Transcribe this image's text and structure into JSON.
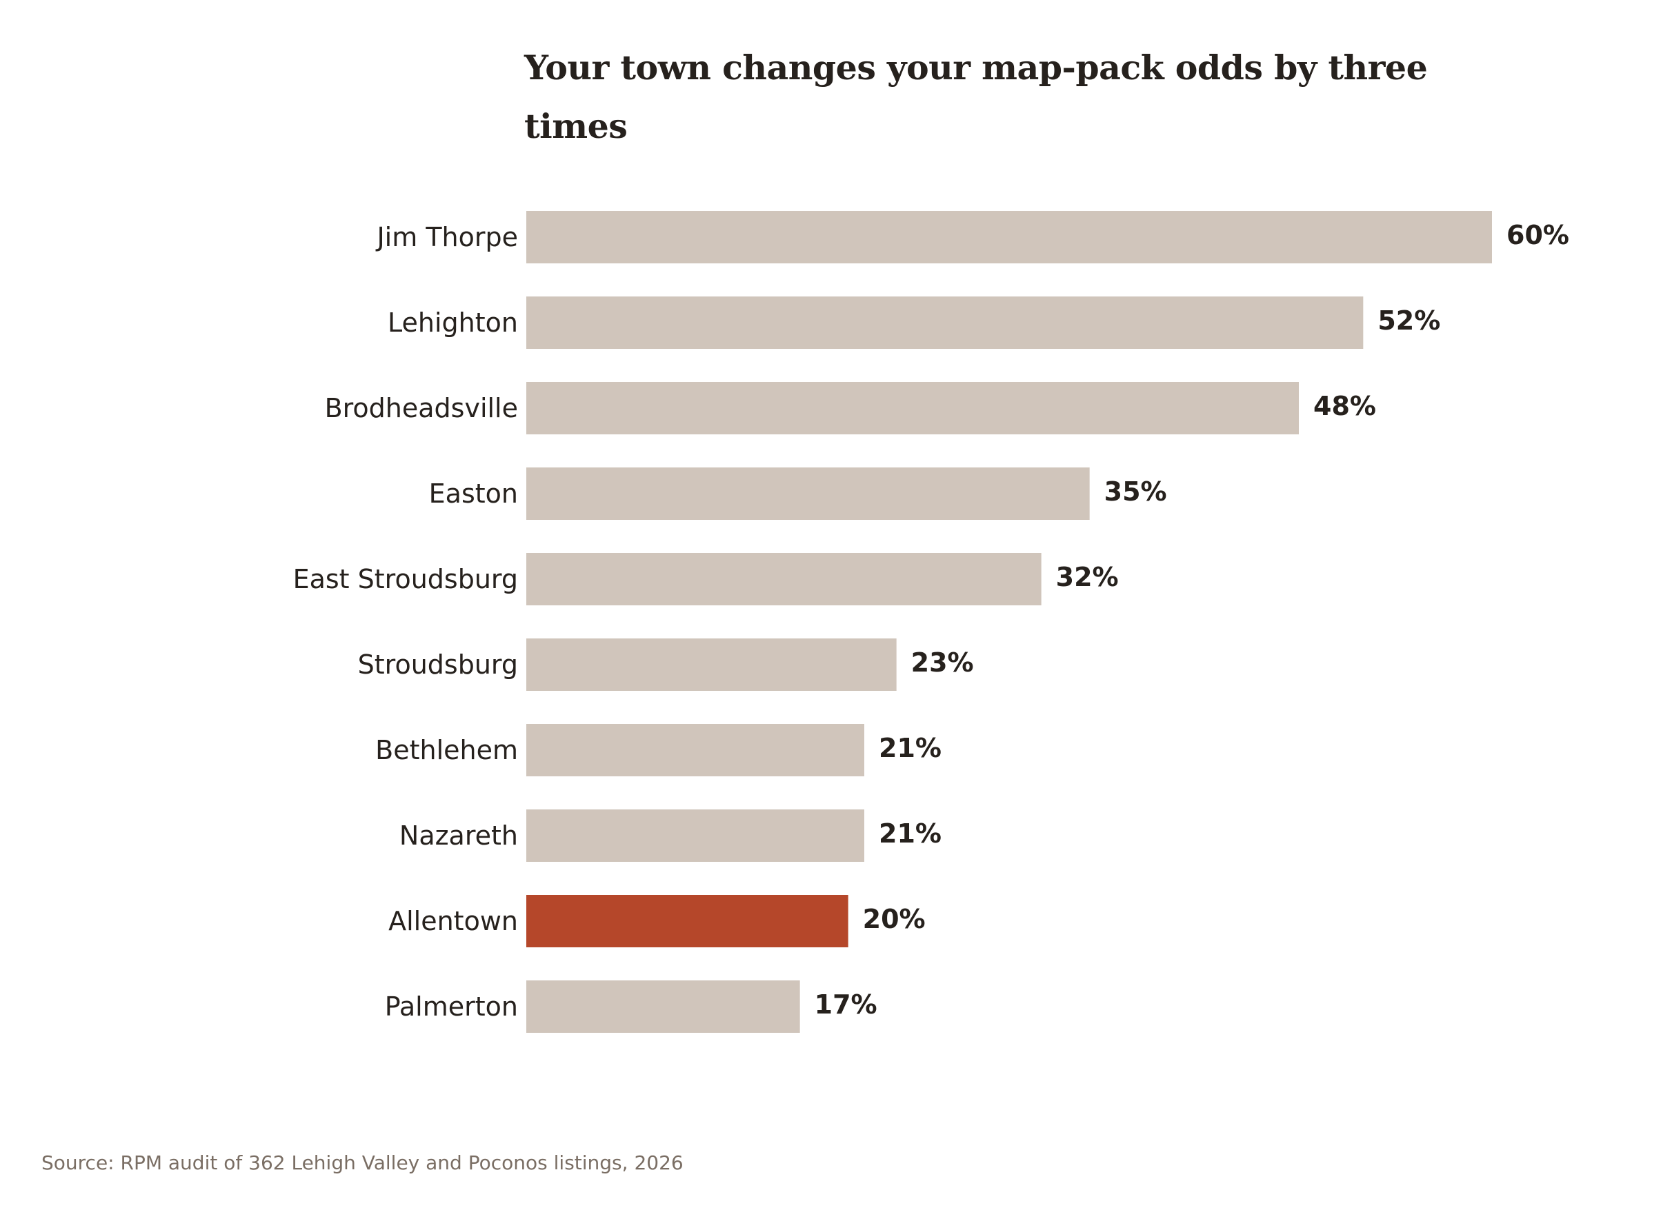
{
  "chart_data": {
    "type": "bar",
    "orientation": "horizontal",
    "title": "Your town changes your map-pack odds by three times",
    "categories": [
      "Jim Thorpe",
      "Lehighton",
      "Brodheadsville",
      "Easton",
      "East Stroudsburg",
      "Stroudsburg",
      "Bethlehem",
      "Nazareth",
      "Allentown",
      "Palmerton"
    ],
    "values": [
      60,
      52,
      48,
      35,
      32,
      23,
      21,
      21,
      20,
      17
    ],
    "value_labels": [
      "60%",
      "52%",
      "48%",
      "35%",
      "32%",
      "23%",
      "21%",
      "21%",
      "20%",
      "17%"
    ],
    "highlight": "Allentown",
    "xlim": [
      0,
      60
    ],
    "grid": false,
    "legend": "none",
    "colors": {
      "bar": "#d0c5bb",
      "highlight": "#b5472a",
      "text": "#26211d",
      "source": "#7a6e64"
    },
    "source": "Source: RPM audit of 362 Lehigh Valley and Poconos listings, 2026"
  }
}
